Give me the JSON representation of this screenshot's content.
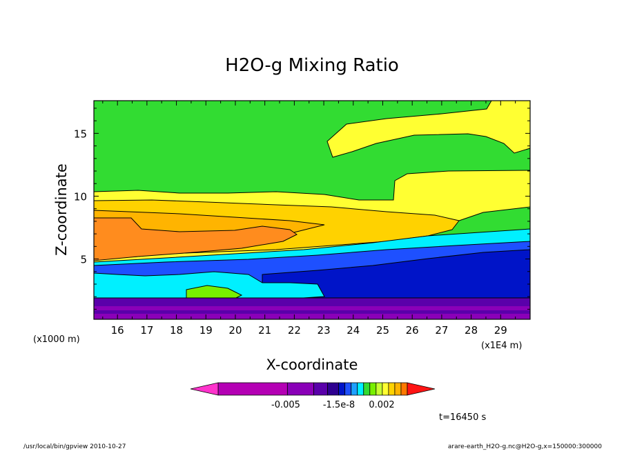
{
  "chart_data": {
    "type": "heatmap",
    "title": "H2O-g Mixing Ratio",
    "xlabel": "X-coordinate",
    "ylabel": "Z-coordinate",
    "x_unit_left": "(x1000 m)",
    "x_unit_right": "(x1E4 m)",
    "xlim": [
      15.2,
      30.0
    ],
    "ylim": [
      0.2,
      17.6
    ],
    "x_ticks": [
      16,
      17,
      18,
      19,
      20,
      21,
      22,
      23,
      24,
      25,
      26,
      27,
      28,
      29
    ],
    "y_ticks": [
      5,
      10,
      15
    ],
    "colorbar": {
      "colors": [
        "#ff33cc",
        "#b400b4",
        "#8a00b8",
        "#5a00aa",
        "#2e0090",
        "#0014c8",
        "#1e50ff",
        "#1ea0ff",
        "#00f0ff",
        "#32dc32",
        "#78f000",
        "#c8ff32",
        "#ffff32",
        "#ffd200",
        "#ffb400",
        "#ff7800",
        "#ff1414"
      ],
      "tick_labels": [
        "-0.005",
        "-1.5e-8",
        "0.002"
      ]
    },
    "time_label": "t=16450 s",
    "regions": [
      {
        "name": "green-upper",
        "color": "#32dc32"
      },
      {
        "name": "yellow-top-right",
        "color": "#ffff32"
      },
      {
        "name": "yellow-layer",
        "color": "#ffff32"
      },
      {
        "name": "gold-layer",
        "color": "#ffd200"
      },
      {
        "name": "light-orange-layer",
        "color": "#ffb400"
      },
      {
        "name": "orange-layer",
        "color": "#ff8c1e"
      },
      {
        "name": "cyan-band",
        "color": "#00f0ff"
      },
      {
        "name": "blue-band",
        "color": "#1e50ff"
      },
      {
        "name": "navy-band",
        "color": "#0014c8"
      },
      {
        "name": "cyan-left-patch",
        "color": "#00f0ff"
      },
      {
        "name": "green-spots",
        "color": "#78f000"
      },
      {
        "name": "purple-base",
        "color": "#5a00aa"
      },
      {
        "name": "magenta-base",
        "color": "#8a00b8"
      }
    ]
  },
  "footer": {
    "left": "/usr/local/bin/gpview  2010-10-27",
    "right": "arare-earth_H2O-g.nc@H2O-g,x=150000:300000"
  }
}
